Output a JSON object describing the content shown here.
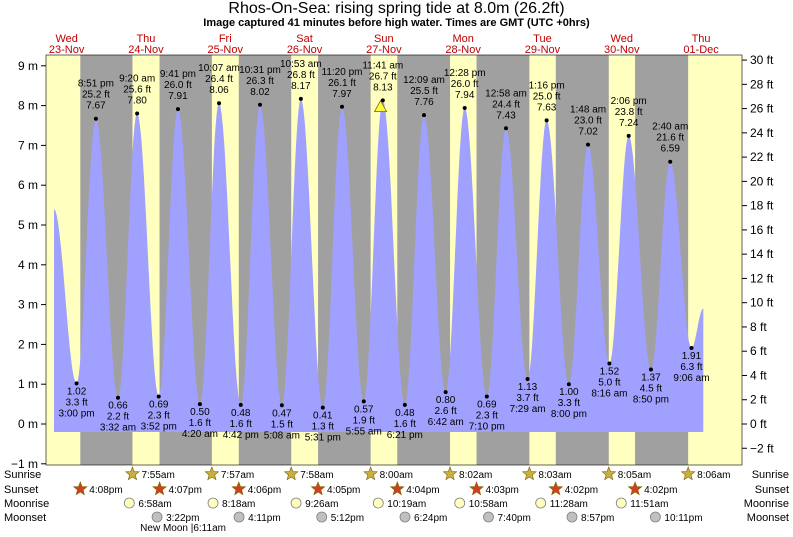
{
  "title": "Rhos-On-Sea: rising  spring tide at 8.0m (26.2ft)",
  "subtitle": "Image captured 41 minutes before high water. Times are GMT (UTC +0hrs)",
  "colors": {
    "day": "#ffffc0",
    "night": "#a0a0a0",
    "tide": "#a0a0ff",
    "date_text": "#c00000",
    "sun": "#c8b040",
    "sunset": "#d04020",
    "moon_rise": "#ffffc0",
    "moon_set": "#c0c0c0"
  },
  "days": [
    {
      "dow": "Wed",
      "date": "23-Nov"
    },
    {
      "dow": "Thu",
      "date": "24-Nov"
    },
    {
      "dow": "Fri",
      "date": "25-Nov"
    },
    {
      "dow": "Sat",
      "date": "26-Nov"
    },
    {
      "dow": "Sun",
      "date": "27-Nov"
    },
    {
      "dow": "Mon",
      "date": "28-Nov"
    },
    {
      "dow": "Tue",
      "date": "29-Nov"
    },
    {
      "dow": "Wed",
      "date": "30-Nov"
    },
    {
      "dow": "Thu",
      "date": "01-Dec"
    }
  ],
  "row_labels": [
    "Sunrise",
    "Sunset",
    "Moonrise",
    "Moonset"
  ],
  "moon_phase_note": "New Moon |6:11am",
  "chart_data": {
    "type": "area",
    "y_left": {
      "unit": "m",
      "ylim": [
        -1,
        9.5
      ],
      "ticks": [
        -1,
        0,
        1,
        2,
        3,
        4,
        5,
        6,
        7,
        8,
        9
      ],
      "tick_labels": [
        "−1 m",
        "0 m",
        "1 m",
        "2 m",
        "3 m",
        "4 m",
        "5 m",
        "6 m",
        "7 m",
        "8 m",
        "9 m"
      ]
    },
    "y_right": {
      "unit": "ft",
      "ticks": [
        -2,
        0,
        2,
        4,
        6,
        8,
        10,
        12,
        14,
        16,
        18,
        20,
        22,
        24,
        26,
        28,
        30
      ],
      "tick_labels": [
        "−2 ft",
        "0 ft",
        "2 ft",
        "4 ft",
        "6 ft",
        "8 ft",
        "10 ft",
        "12 ft",
        "14 ft",
        "16 ft",
        "18 ft",
        "20 ft",
        "22 ft",
        "24 ft",
        "26 ft",
        "28 ft",
        "30 ft"
      ]
    },
    "series_start": {
      "time": "23-Nov 08:10",
      "height_m": 5.4
    },
    "series_end": {
      "time": "01-Dec 12:40",
      "height_m": 2.9
    },
    "tides": [
      {
        "type": "low",
        "time": "23-Nov 15:00",
        "time_label": "3:00 pm",
        "height_m": 1.02,
        "m_label": "1.02 m",
        "ft_label": "3.3 ft"
      },
      {
        "type": "high",
        "time": "23-Nov 20:51",
        "time_label": "8:51 pm",
        "height_m": 7.67,
        "m_label": "7.67 m",
        "ft_label": "25.2 ft"
      },
      {
        "type": "low",
        "time": "24-Nov 03:32",
        "time_label": "3:32 am",
        "height_m": 0.66,
        "m_label": "0.66 m",
        "ft_label": "2.2 ft"
      },
      {
        "type": "high",
        "time": "24-Nov 09:20",
        "time_label": "9:20 am",
        "height_m": 7.8,
        "m_label": "7.80 m",
        "ft_label": "25.6 ft"
      },
      {
        "type": "low",
        "time": "24-Nov 15:52",
        "time_label": "3:52 pm",
        "height_m": 0.69,
        "m_label": "0.69 m",
        "ft_label": "2.3 ft"
      },
      {
        "type": "high",
        "time": "24-Nov 21:41",
        "time_label": "9:41 pm",
        "height_m": 7.91,
        "m_label": "7.91 m",
        "ft_label": "26.0 ft"
      },
      {
        "type": "low",
        "time": "25-Nov 04:20",
        "time_label": "4:20 am",
        "height_m": 0.5,
        "m_label": "0.50 m",
        "ft_label": "1.6 ft"
      },
      {
        "type": "high",
        "time": "25-Nov 10:07",
        "time_label": "10:07 am",
        "height_m": 8.06,
        "m_label": "8.06 m",
        "ft_label": "26.4 ft"
      },
      {
        "type": "low",
        "time": "25-Nov 16:42",
        "time_label": "4:42 pm",
        "height_m": 0.48,
        "m_label": "0.48 m",
        "ft_label": "1.6 ft"
      },
      {
        "type": "high",
        "time": "25-Nov 22:31",
        "time_label": "10:31 pm",
        "height_m": 8.02,
        "m_label": "8.02 m",
        "ft_label": "26.3 ft"
      },
      {
        "type": "low",
        "time": "26-Nov 05:08",
        "time_label": "5:08 am",
        "height_m": 0.47,
        "m_label": "0.47 m",
        "ft_label": "1.5 ft"
      },
      {
        "type": "high",
        "time": "26-Nov 10:53",
        "time_label": "10:53 am",
        "height_m": 8.17,
        "m_label": "8.17 m",
        "ft_label": "26.8 ft"
      },
      {
        "type": "low",
        "time": "26-Nov 17:31",
        "time_label": "5:31 pm",
        "height_m": 0.41,
        "m_label": "0.41 m",
        "ft_label": "1.3 ft"
      },
      {
        "type": "high",
        "time": "26-Nov 23:20",
        "time_label": "11:20 pm",
        "height_m": 7.97,
        "m_label": "7.97 m",
        "ft_label": "26.1 ft"
      },
      {
        "type": "low",
        "time": "27-Nov 05:55",
        "time_label": "5:55 am",
        "height_m": 0.57,
        "m_label": "0.57 m",
        "ft_label": "1.9 ft"
      },
      {
        "type": "high",
        "time": "27-Nov 11:41",
        "time_label": "11:41 am",
        "height_m": 8.13,
        "m_label": "8.13 m",
        "ft_label": "26.7 ft"
      },
      {
        "type": "low",
        "time": "27-Nov 18:21",
        "time_label": "6:21 pm",
        "height_m": 0.48,
        "m_label": "0.48 m",
        "ft_label": "1.6 ft"
      },
      {
        "type": "high",
        "time": "28-Nov 00:09",
        "time_label": "12:09 am",
        "height_m": 7.76,
        "m_label": "7.76 m",
        "ft_label": "25.5 ft"
      },
      {
        "type": "low",
        "time": "28-Nov 06:42",
        "time_label": "6:42 am",
        "height_m": 0.8,
        "m_label": "0.80 m",
        "ft_label": "2.6 ft"
      },
      {
        "type": "high",
        "time": "28-Nov 12:28",
        "time_label": "12:28 pm",
        "height_m": 7.94,
        "m_label": "7.94 m",
        "ft_label": "26.0 ft"
      },
      {
        "type": "low",
        "time": "28-Nov 19:10",
        "time_label": "7:10 pm",
        "height_m": 0.69,
        "m_label": "0.69 m",
        "ft_label": "2.3 ft"
      },
      {
        "type": "high",
        "time": "29-Nov 00:58",
        "time_label": "12:58 am",
        "height_m": 7.43,
        "m_label": "7.43 m",
        "ft_label": "24.4 ft"
      },
      {
        "type": "low",
        "time": "29-Nov 07:29",
        "time_label": "7:29 am",
        "height_m": 1.13,
        "m_label": "1.13 m",
        "ft_label": "3.7 ft"
      },
      {
        "type": "high",
        "time": "29-Nov 13:16",
        "time_label": "1:16 pm",
        "height_m": 7.63,
        "m_label": "7.63 m",
        "ft_label": "25.0 ft"
      },
      {
        "type": "low",
        "time": "29-Nov 20:00",
        "time_label": "8:00 pm",
        "height_m": 1.0,
        "m_label": "1.00 m",
        "ft_label": "3.3 ft"
      },
      {
        "type": "high",
        "time": "30-Nov 01:48",
        "time_label": "1:48 am",
        "height_m": 7.02,
        "m_label": "7.02 m",
        "ft_label": "23.0 ft"
      },
      {
        "type": "low",
        "time": "30-Nov 08:16",
        "time_label": "8:16 am",
        "height_m": 1.52,
        "m_label": "1.52 m",
        "ft_label": "5.0 ft"
      },
      {
        "type": "high",
        "time": "30-Nov 14:06",
        "time_label": "2:06 pm",
        "height_m": 7.24,
        "m_label": "7.24 m",
        "ft_label": "23.8 ft"
      },
      {
        "type": "low",
        "time": "30-Nov 20:50",
        "time_label": "8:50 pm",
        "height_m": 1.37,
        "m_label": "1.37 m",
        "ft_label": "4.5 ft"
      },
      {
        "type": "high",
        "time": "01-Dec 02:40",
        "time_label": "2:40 am",
        "height_m": 6.59,
        "m_label": "6.59 m",
        "ft_label": "21.6 ft"
      },
      {
        "type": "low",
        "time": "01-Dec 09:06",
        "time_label": "9:06 am",
        "height_m": 1.91,
        "m_label": "1.91 m",
        "ft_label": "6.3 ft"
      }
    ],
    "current": {
      "time": "27-Nov 11:00",
      "height_m": 8.0
    },
    "sunrise": [
      {
        "time": "24-Nov 07:55",
        "label": "7:55am"
      },
      {
        "time": "25-Nov 07:57",
        "label": "7:57am"
      },
      {
        "time": "26-Nov 07:58",
        "label": "7:58am"
      },
      {
        "time": "27-Nov 08:00",
        "label": "8:00am"
      },
      {
        "time": "28-Nov 08:02",
        "label": "8:02am"
      },
      {
        "time": "29-Nov 08:03",
        "label": "8:03am"
      },
      {
        "time": "30-Nov 08:05",
        "label": "8:05am"
      },
      {
        "time": "01-Dec 08:06",
        "label": "8:06am"
      }
    ],
    "sunset": [
      {
        "time": "23-Nov 16:08",
        "label": "4:08pm"
      },
      {
        "time": "24-Nov 16:07",
        "label": "4:07pm"
      },
      {
        "time": "25-Nov 16:06",
        "label": "4:06pm"
      },
      {
        "time": "26-Nov 16:05",
        "label": "4:05pm"
      },
      {
        "time": "27-Nov 16:04",
        "label": "4:04pm"
      },
      {
        "time": "28-Nov 16:03",
        "label": "4:03pm"
      },
      {
        "time": "29-Nov 16:02",
        "label": "4:02pm"
      },
      {
        "time": "30-Nov 16:02",
        "label": "4:02pm"
      }
    ],
    "moonrise": [
      {
        "time": "24-Nov 06:58",
        "label": "6:58am"
      },
      {
        "time": "25-Nov 08:18",
        "label": "8:18am"
      },
      {
        "time": "26-Nov 09:26",
        "label": "9:26am"
      },
      {
        "time": "27-Nov 10:19",
        "label": "10:19am"
      },
      {
        "time": "28-Nov 10:58",
        "label": "10:58am"
      },
      {
        "time": "29-Nov 11:28",
        "label": "11:28am"
      },
      {
        "time": "30-Nov 11:51",
        "label": "11:51am"
      }
    ],
    "moonset": [
      {
        "time": "24-Nov 15:22",
        "label": "3:22pm"
      },
      {
        "time": "25-Nov 16:11",
        "label": "4:11pm"
      },
      {
        "time": "26-Nov 17:12",
        "label": "5:12pm"
      },
      {
        "time": "27-Nov 18:24",
        "label": "6:24pm"
      },
      {
        "time": "28-Nov 19:40",
        "label": "7:40pm"
      },
      {
        "time": "29-Nov 20:57",
        "label": "8:57pm"
      },
      {
        "time": "30-Nov 22:11",
        "label": "10:11pm"
      }
    ]
  }
}
